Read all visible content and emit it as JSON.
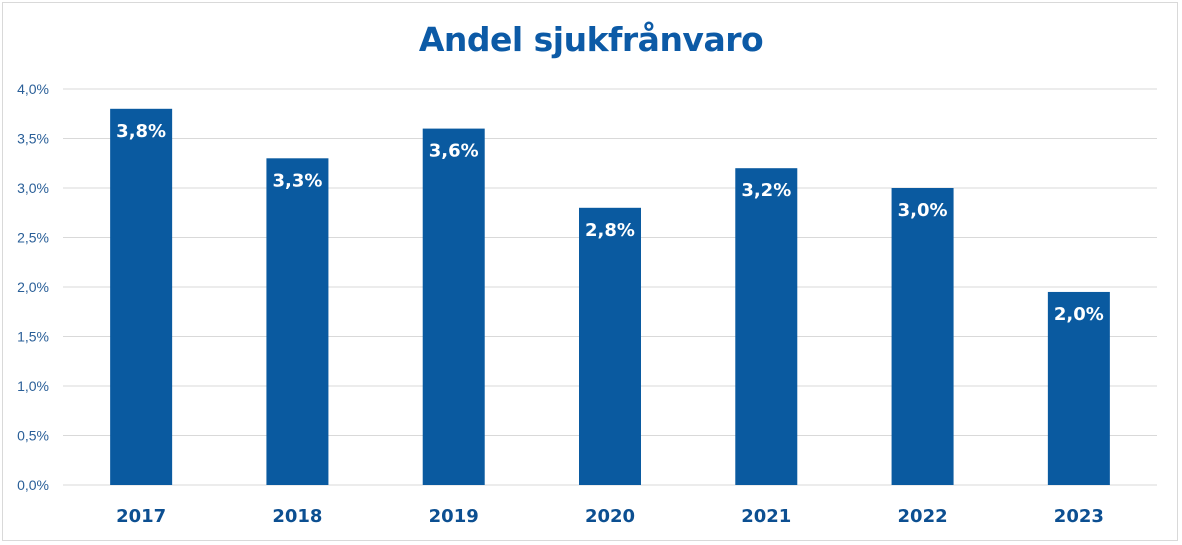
{
  "chart_data": {
    "type": "bar",
    "title": "Andel sjukfrånvaro",
    "xlabel": "",
    "ylabel": "",
    "categories": [
      "2017",
      "2018",
      "2019",
      "2020",
      "2021",
      "2022",
      "2023"
    ],
    "values": [
      3.8,
      3.3,
      3.6,
      2.8,
      3.2,
      3.0,
      1.95
    ],
    "value_labels": [
      "3,8%",
      "3,3%",
      "3,6%",
      "2,8%",
      "3,2%",
      "3,0%",
      "2,0%"
    ],
    "ylim": [
      0,
      4.0
    ],
    "yticks": [
      0,
      0.5,
      1.0,
      1.5,
      2.0,
      2.5,
      3.0,
      3.5,
      4.0
    ],
    "ytick_labels": [
      "0,0%",
      "0,5%",
      "1,0%",
      "1,5%",
      "2,0%",
      "2,5%",
      "3,0%",
      "3,5%",
      "4,0%"
    ],
    "grid": true,
    "legend": "none",
    "colors": {
      "bar": "#0a5aa0",
      "title": "#0c5aa6",
      "grid": "#d9d9d9",
      "axis_text": "#2a5f98"
    }
  }
}
